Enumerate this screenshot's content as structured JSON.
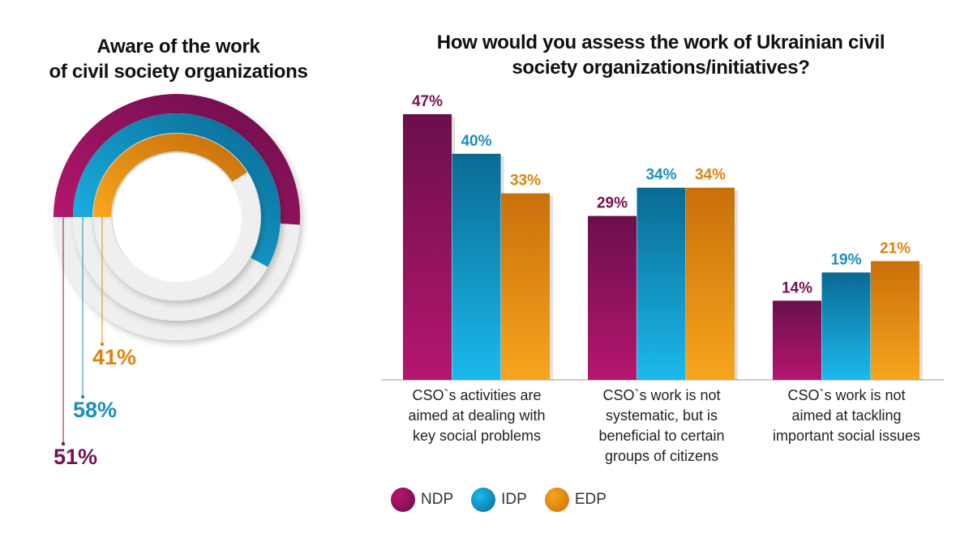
{
  "colors": {
    "NDP": {
      "top": "#6b0f4c",
      "bottom": "#b5166e",
      "label": "#7a1155"
    },
    "IDP": {
      "top": "#0a6a93",
      "bottom": "#1bb9ec",
      "label": "#1a8fbf"
    },
    "EDP": {
      "top": "#c9700a",
      "bottom": "#f7a51d",
      "label": "#e0820f"
    }
  },
  "donut": {
    "title_line1": "Aware of the work",
    "title_line2": "of civil society organizations",
    "rings": [
      {
        "series": "NDP",
        "value": 51,
        "label": "51%"
      },
      {
        "series": "IDP",
        "value": 58,
        "label": "58%"
      },
      {
        "series": "EDP",
        "value": 41,
        "label": "41%"
      }
    ]
  },
  "bar": {
    "title_line1": "How would you assess the work of Ukrainian civil",
    "title_line2": "society organizations/initiatives?"
  },
  "chart_data": [
    {
      "type": "pie",
      "title": "Aware of the work of civil society organizations",
      "series": [
        {
          "name": "NDP",
          "values": [
            51
          ]
        },
        {
          "name": "IDP",
          "values": [
            58
          ]
        },
        {
          "name": "EDP",
          "values": [
            41
          ]
        }
      ],
      "unit": "%"
    },
    {
      "type": "bar",
      "title": "How would you assess the work of Ukrainian civil society organizations/initiatives?",
      "categories": [
        [
          "CSO`s activities are",
          "aimed at dealing with",
          "key social problems"
        ],
        [
          "CSO`s work is not",
          "systematic, but is",
          "beneficial to certain",
          "groups of citizens"
        ],
        [
          "CSO`s work is not",
          "aimed at tackling",
          "important social issues"
        ]
      ],
      "series": [
        {
          "name": "NDP",
          "values": [
            47,
            29,
            14
          ],
          "labels": [
            "47%",
            "29%",
            "14%"
          ]
        },
        {
          "name": "IDP",
          "values": [
            40,
            34,
            19
          ],
          "labels": [
            "40%",
            "34%",
            "19%"
          ]
        },
        {
          "name": "EDP",
          "values": [
            33,
            34,
            21
          ],
          "labels": [
            "33%",
            "34%",
            "21%"
          ]
        }
      ],
      "ylim": [
        0,
        47
      ],
      "grid": false,
      "legend": "bottom"
    }
  ],
  "legend": [
    {
      "series": "NDP",
      "label": "NDP"
    },
    {
      "series": "IDP",
      "label": "IDP"
    },
    {
      "series": "EDP",
      "label": "EDP"
    }
  ]
}
